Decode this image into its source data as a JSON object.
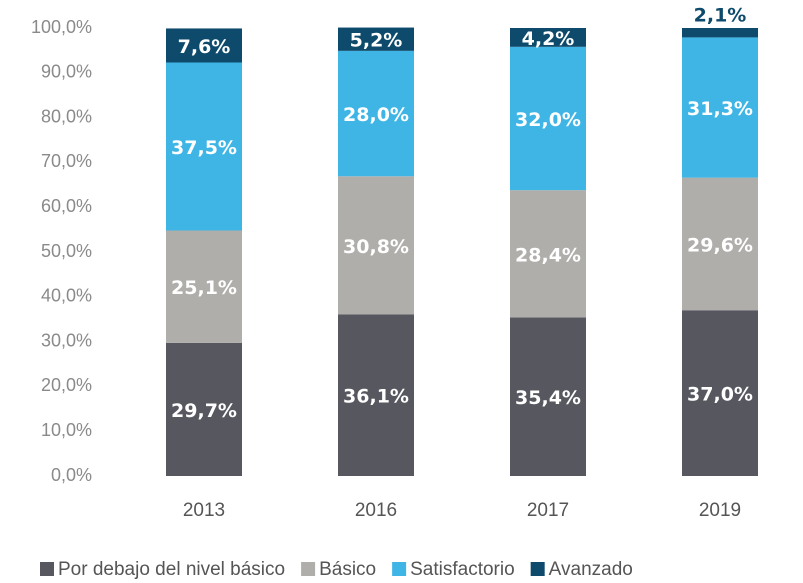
{
  "chart_data": {
    "type": "stacked_bar",
    "categories": [
      "2013",
      "2016",
      "2017",
      "2019"
    ],
    "series": [
      {
        "name": "Por debajo del nivel básico",
        "color": "#575760",
        "values": [
          29.7,
          36.1,
          35.4,
          37.0
        ],
        "value_labels": [
          "29,7%",
          "36,1%",
          "35,4%",
          "37,0%"
        ]
      },
      {
        "name": "Básico",
        "color": "#b0aeab",
        "values": [
          25.1,
          30.8,
          28.4,
          29.6
        ],
        "value_labels": [
          "25,1%",
          "30,8%",
          "28,4%",
          "29,6%"
        ]
      },
      {
        "name": "Satisfactorio",
        "color": "#3fb5e6",
        "values": [
          37.5,
          28.0,
          32.0,
          31.3
        ],
        "value_labels": [
          "37,5%",
          "28,0%",
          "32,0%",
          "31,3%"
        ]
      },
      {
        "name": "Avanzado",
        "color": "#0d4a6b",
        "values": [
          7.6,
          5.2,
          4.2,
          2.1
        ],
        "value_labels": [
          "7,6%",
          "5,2%",
          "4,2%",
          "2,1%"
        ]
      }
    ],
    "ylim": [
      0,
      100
    ],
    "yticks": [
      {
        "value": 0,
        "label": "0,0%"
      },
      {
        "value": 10,
        "label": "10,0%"
      },
      {
        "value": 20,
        "label": "20,0%"
      },
      {
        "value": 30,
        "label": "30,0%"
      },
      {
        "value": 40,
        "label": "40,0%"
      },
      {
        "value": 50,
        "label": "50,0%"
      },
      {
        "value": 60,
        "label": "60,0%"
      },
      {
        "value": 70,
        "label": "70,0%"
      },
      {
        "value": 80,
        "label": "80,0%"
      },
      {
        "value": 90,
        "label": "90,0%"
      },
      {
        "value": {
          "value": 100
        },
        "label": "100,0%"
      }
    ]
  }
}
